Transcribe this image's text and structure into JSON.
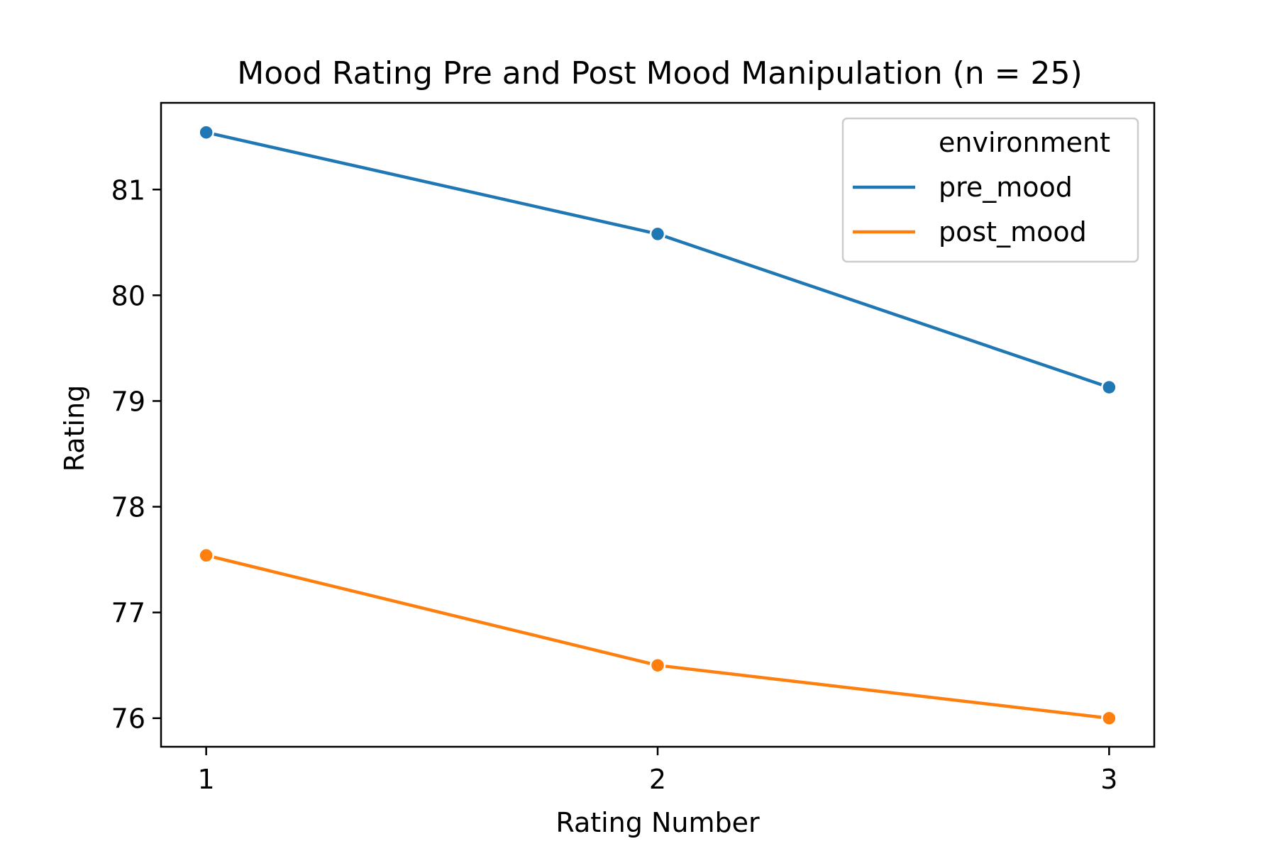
{
  "chart_data": {
    "type": "line",
    "title": "Mood Rating Pre and Post Mood Manipulation (n = 25)",
    "xlabel": "Rating Number",
    "ylabel": "Rating",
    "x": [
      1,
      2,
      3
    ],
    "xticks": [
      "1",
      "2",
      "3"
    ],
    "yticks": [
      "76",
      "77",
      "78",
      "79",
      "80",
      "81"
    ],
    "xlim": [
      0.9,
      3.1
    ],
    "ylim": [
      75.73,
      81.82
    ],
    "grid": false,
    "legend": {
      "title": "environment",
      "placement": "top-right"
    },
    "series": [
      {
        "name": "pre_mood",
        "color": "#1f77b4",
        "values": [
          81.54,
          80.58,
          79.13
        ]
      },
      {
        "name": "post_mood",
        "color": "#ff7f0e",
        "values": [
          77.54,
          76.5,
          76.0
        ]
      }
    ]
  }
}
